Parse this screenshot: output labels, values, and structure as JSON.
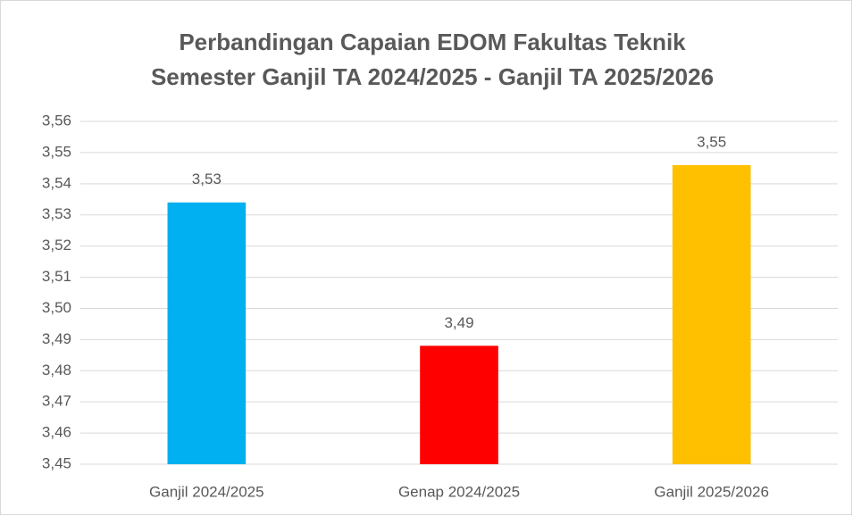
{
  "chart_data": {
    "type": "bar",
    "title": [
      "Perbandingan Capaian EDOM Fakultas Teknik",
      "Semester Ganjil TA 2024/2025  - Ganjil TA 2025/2026"
    ],
    "categories": [
      "Ganjil 2024/2025",
      "Genap 2024/2025",
      "Ganjil 2025/2026"
    ],
    "values": [
      3.534,
      3.488,
      3.546
    ],
    "value_labels": [
      "3,53",
      "3,49",
      "3,55"
    ],
    "colors": [
      "#00b0f0",
      "#ff0000",
      "#ffc000"
    ],
    "ylim": [
      3.45,
      3.56
    ],
    "yticks": [
      {
        "value": 3.45,
        "label": "3,45"
      },
      {
        "value": 3.46,
        "label": "3,46"
      },
      {
        "value": 3.47,
        "label": "3,47"
      },
      {
        "value": 3.48,
        "label": "3,48"
      },
      {
        "value": 3.49,
        "label": "3,49"
      },
      {
        "value": 3.5,
        "label": "3,50"
      },
      {
        "value": 3.51,
        "label": "3,51"
      },
      {
        "value": 3.52,
        "label": "3,52"
      },
      {
        "value": 3.53,
        "label": "3,53"
      },
      {
        "value": 3.54,
        "label": "3,54"
      },
      {
        "value": 3.55,
        "label": "3,55"
      },
      {
        "value": 3.56,
        "label": "3,56"
      }
    ],
    "grid": true
  }
}
